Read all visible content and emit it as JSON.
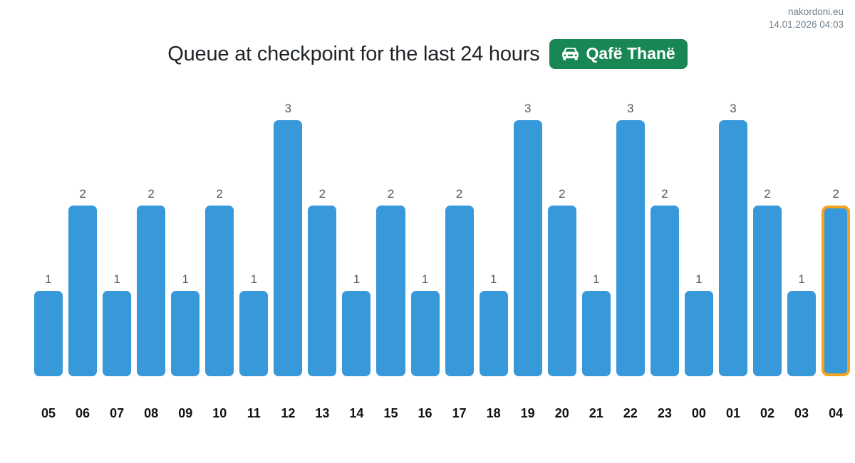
{
  "header": {
    "site": "nakordoni.eu",
    "datetime": "14.01.2026 04:03"
  },
  "title": {
    "text": "Queue at checkpoint for the last 24 hours",
    "badge_label": "Qafë Thanë",
    "badge_icon": "car-front-icon"
  },
  "colors": {
    "bar": "#3798da",
    "bar_highlight_border": "#f5a31d",
    "badge_bg": "#198754",
    "badge_text": "#ffffff",
    "value_label": "#54575c",
    "tick_label": "#101113",
    "header_text": "#71808e",
    "title_text": "#1e2328"
  },
  "chart_data": {
    "type": "bar",
    "title": "Queue at checkpoint for the last 24 hours",
    "xlabel": "",
    "ylabel": "",
    "categories": [
      "05",
      "06",
      "07",
      "08",
      "09",
      "10",
      "11",
      "12",
      "13",
      "14",
      "15",
      "16",
      "17",
      "18",
      "19",
      "20",
      "21",
      "22",
      "23",
      "00",
      "01",
      "02",
      "03",
      "04"
    ],
    "values": [
      1,
      2,
      1,
      2,
      1,
      2,
      1,
      3,
      2,
      1,
      2,
      1,
      2,
      1,
      3,
      2,
      1,
      3,
      2,
      1,
      3,
      2,
      1,
      2
    ],
    "ylim": [
      0,
      3
    ],
    "grid": false,
    "legend": false,
    "value_labels_shown": true,
    "highlighted_index": 23,
    "highlighted_category": "04"
  }
}
